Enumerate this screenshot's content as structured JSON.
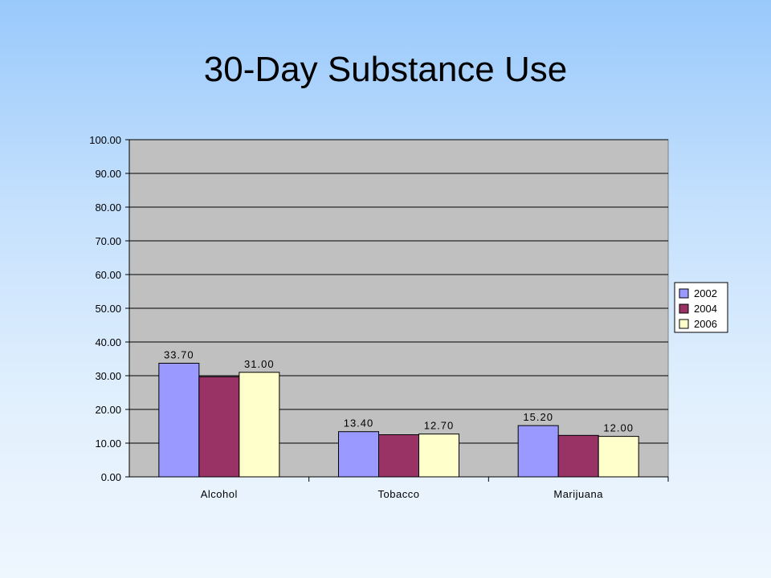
{
  "slide": {
    "title": "30-Day Substance Use"
  },
  "colors": {
    "plot_background": "#c0c0c0",
    "gridline": "#000000",
    "series": [
      "#9999ff",
      "#993366",
      "#ffffcc"
    ]
  },
  "chart_data": {
    "type": "bar",
    "title": "30-Day Substance Use",
    "categories": [
      "Alcohol",
      "Tobacco",
      "Marijuana"
    ],
    "series": [
      {
        "name": "2002",
        "values": [
          33.7,
          13.4,
          15.2
        ],
        "labels": [
          "33.70",
          "13.40",
          "15.20"
        ]
      },
      {
        "name": "2004",
        "values": [
          29.7,
          12.5,
          12.3
        ],
        "labels": [
          "",
          "",
          ""
        ]
      },
      {
        "name": "2006",
        "values": [
          31.0,
          12.7,
          12.0
        ],
        "labels": [
          "31.00",
          "12.70",
          "12.00"
        ]
      }
    ],
    "ylim": [
      0,
      100
    ],
    "yticks": [
      "0.00",
      "10.00",
      "20.00",
      "30.00",
      "40.00",
      "50.00",
      "60.00",
      "70.00",
      "80.00",
      "90.00",
      "100.00"
    ],
    "xlabel": "",
    "ylabel": "",
    "grid": true,
    "legend_position": "right"
  }
}
